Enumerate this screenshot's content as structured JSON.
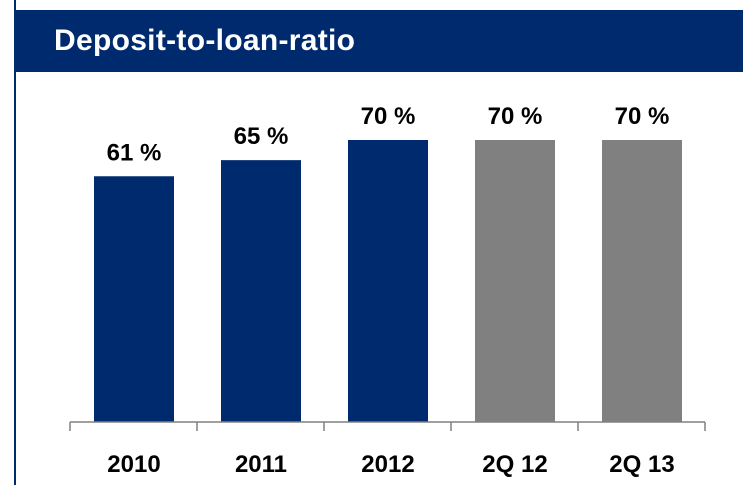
{
  "chart_data": {
    "type": "bar",
    "title": "Deposit-to-loan-ratio",
    "categories": [
      "2010",
      "2011",
      "2012",
      "2Q 12",
      "2Q 13"
    ],
    "values": [
      61,
      65,
      70,
      70,
      70
    ],
    "data_labels": [
      "61 %",
      "65 %",
      "70 %",
      "70 %",
      "70 %"
    ],
    "ylim": [
      0,
      70
    ],
    "grid": false,
    "colors": [
      "#002a6e",
      "#002a6e",
      "#002a6e",
      "#808080",
      "#808080"
    ]
  }
}
